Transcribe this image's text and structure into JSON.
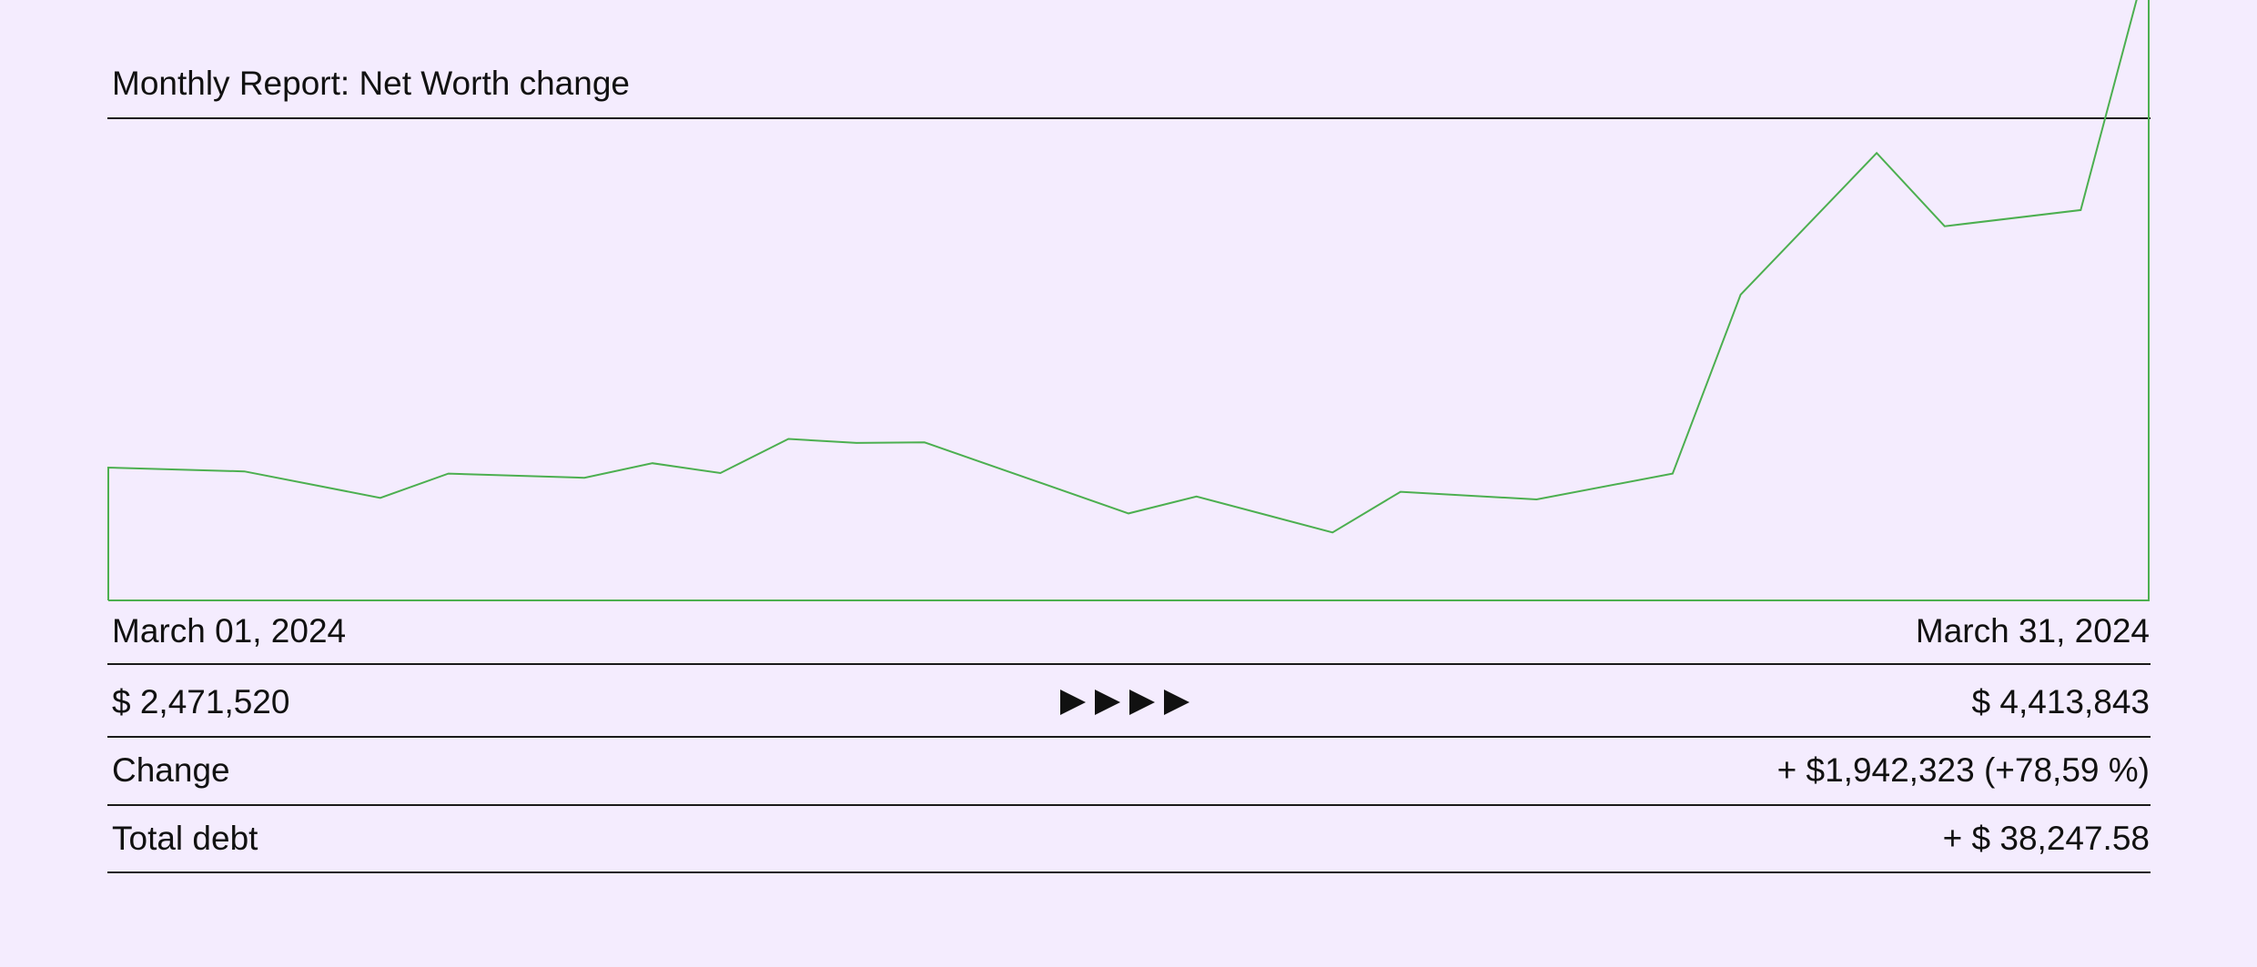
{
  "report": {
    "title": "Monthly Report: Net Worth change",
    "start_date": "March 01, 2024",
    "end_date": "March 31, 2024",
    "start_value": "$ 2,471,520",
    "end_value": "$ 4,413,843",
    "change_label": "Change",
    "change_value": "+ $1,942,323 (+78,59 %)",
    "debt_label": "Total debt",
    "debt_value": "+ $ 38,247.58",
    "arrow_icons": [
      "play-arrow-icon",
      "play-arrow-icon",
      "play-arrow-icon",
      "play-arrow-icon"
    ],
    "colors": {
      "background": "#f4ecfe",
      "line": "#4caf50",
      "text": "#111111"
    }
  },
  "chart_data": {
    "type": "area",
    "x": [
      "2024-03-01",
      "2024-03-03",
      "2024-03-05",
      "2024-03-06",
      "2024-03-08",
      "2024-03-09",
      "2024-03-10",
      "2024-03-11",
      "2024-03-12",
      "2024-03-13",
      "2024-03-16",
      "2024-03-17",
      "2024-03-19",
      "2024-03-20",
      "2024-03-22",
      "2024-03-24",
      "2024-03-25",
      "2024-03-27",
      "2024-03-28",
      "2024-03-30",
      "2024-03-31"
    ],
    "values": [
      2471520,
      2457000,
      2357000,
      2449000,
      2433000,
      2488000,
      2451000,
      2580000,
      2565000,
      2567000,
      2298000,
      2362000,
      2226000,
      2380000,
      2351000,
      2449000,
      3126000,
      3662000,
      3385000,
      3446000,
      4413843
    ],
    "ylim": [
      1969000,
      3790000
    ],
    "grid": false,
    "legend": false
  }
}
